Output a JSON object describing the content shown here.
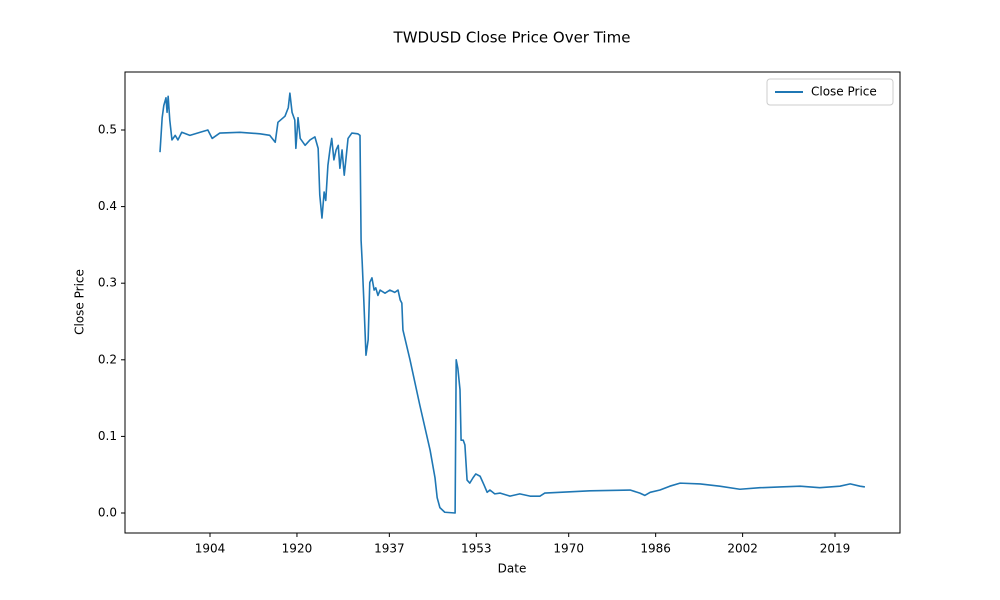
{
  "chart_data": {
    "type": "line",
    "title": "TWDUSD Close Price Over Time",
    "x_label": "Date",
    "y_label": "Close Price",
    "legend": "upper right",
    "grid": false,
    "x": [
      1894.8,
      1895.2,
      1895.5,
      1895.9,
      1896.1,
      1896.3,
      1896.6,
      1897.0,
      1897.6,
      1898.1,
      1898.8,
      1900.3,
      1902.2,
      1903.6,
      1904.4,
      1905.8,
      1909.5,
      1913.2,
      1915.0,
      1916.0,
      1916.5,
      1917.8,
      1918.4,
      1918.7,
      1919.1,
      1919.6,
      1919.8,
      1920.2,
      1920.6,
      1921.5,
      1922.4,
      1923.3,
      1923.9,
      1924.2,
      1924.6,
      1925.0,
      1925.3,
      1925.7,
      1926.1,
      1926.4,
      1926.8,
      1927.2,
      1927.6,
      1927.9,
      1928.3,
      1928.7,
      1929.0,
      1929.4,
      1930.1,
      1931.2,
      1931.6,
      1931.8,
      1932.0,
      1932.3,
      1932.7,
      1933.1,
      1933.4,
      1933.8,
      1934.2,
      1934.5,
      1934.9,
      1935.3,
      1936.2,
      1937.1,
      1938.0,
      1938.6,
      1939.0,
      1939.3,
      1939.5,
      1940.8,
      1942.6,
      1944.5,
      1945.4,
      1945.8,
      1946.3,
      1947.2,
      1949.1,
      1949.3,
      1949.6,
      1950.0,
      1950.2,
      1950.6,
      1950.9,
      1951.3,
      1951.8,
      1952.4,
      1952.9,
      1953.7,
      1954.4,
      1955.0,
      1955.5,
      1956.4,
      1957.4,
      1959.2,
      1961.0,
      1962.9,
      1964.7,
      1965.6,
      1968.4,
      1973.9,
      1981.3,
      1983.1,
      1984.0,
      1985.0,
      1986.8,
      1988.6,
      1990.5,
      1994.2,
      1997.8,
      2001.5,
      2005.2,
      2008.9,
      2012.6,
      2016.2,
      2019.9,
      2021.8,
      2023.6,
      2024.5
    ],
    "series": [
      {
        "name": "Close Price",
        "color": "#1f77b4",
        "values": [
          0.471,
          0.516,
          0.532,
          0.542,
          0.523,
          0.544,
          0.513,
          0.487,
          0.493,
          0.487,
          0.497,
          0.493,
          0.497,
          0.5,
          0.489,
          0.496,
          0.497,
          0.495,
          0.493,
          0.484,
          0.51,
          0.518,
          0.529,
          0.548,
          0.523,
          0.513,
          0.476,
          0.516,
          0.489,
          0.48,
          0.487,
          0.491,
          0.476,
          0.415,
          0.385,
          0.419,
          0.408,
          0.454,
          0.476,
          0.489,
          0.461,
          0.474,
          0.48,
          0.45,
          0.474,
          0.441,
          0.461,
          0.489,
          0.496,
          0.495,
          0.493,
          0.356,
          0.328,
          0.278,
          0.206,
          0.226,
          0.301,
          0.307,
          0.291,
          0.294,
          0.284,
          0.291,
          0.287,
          0.291,
          0.288,
          0.291,
          0.278,
          0.274,
          0.239,
          0.2,
          0.141,
          0.082,
          0.046,
          0.02,
          0.007,
          0.001,
          0.0,
          0.2,
          0.189,
          0.161,
          0.095,
          0.095,
          0.089,
          0.043,
          0.039,
          0.046,
          0.051,
          0.048,
          0.037,
          0.027,
          0.03,
          0.025,
          0.026,
          0.022,
          0.025,
          0.022,
          0.022,
          0.026,
          0.027,
          0.029,
          0.03,
          0.026,
          0.023,
          0.027,
          0.03,
          0.035,
          0.039,
          0.038,
          0.035,
          0.031,
          0.033,
          0.034,
          0.035,
          0.033,
          0.035,
          0.038,
          0.035,
          0.034
        ]
      }
    ],
    "xlim": [
      1888.36,
      2030.96
    ],
    "xticks": [
      1904,
      1920,
      1937,
      1953,
      1970,
      1986,
      2002,
      2019
    ],
    "ylim": [
      -0.0261,
      0.5757
    ],
    "yticks": [
      {
        "value": 0,
        "label": "0.0"
      },
      0.1,
      0.2,
      0.3,
      0.4,
      0.5
    ]
  }
}
